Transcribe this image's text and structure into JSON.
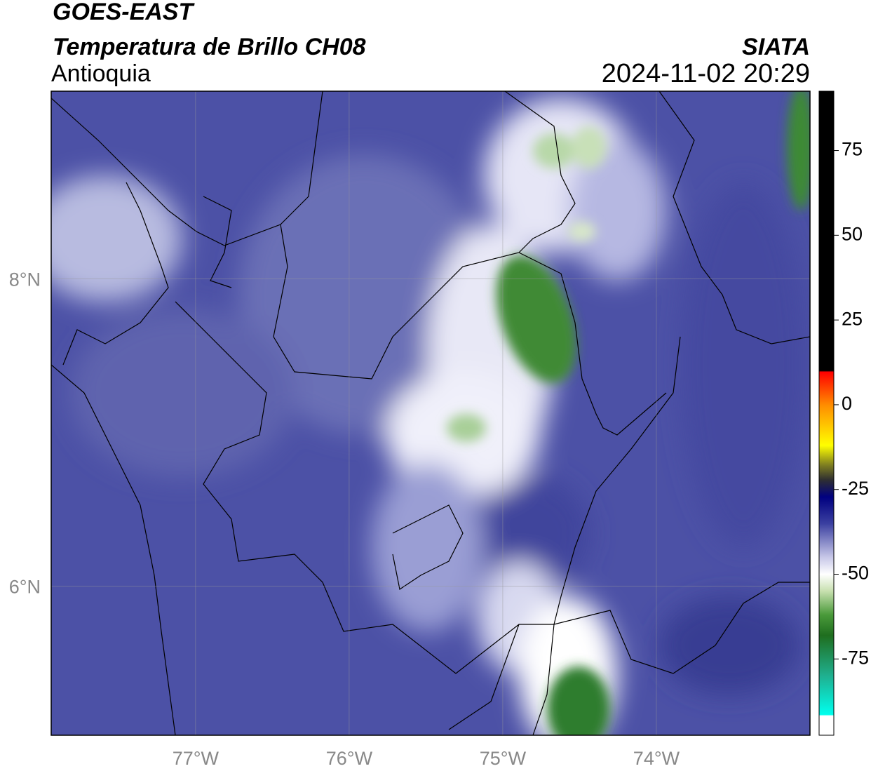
{
  "header": {
    "title": "GOES-EAST",
    "subtitle": "Temperatura de Brillo CH08",
    "region": "Antioquia",
    "source": "SIATA",
    "datetime": "2024-11-02 20:29"
  },
  "map": {
    "xlim": [
      -77.94,
      -73.0
    ],
    "ylim": [
      5.03,
      9.22
    ],
    "xticks": [
      {
        "value": -77,
        "label": "77°W"
      },
      {
        "value": -76,
        "label": "76°W"
      },
      {
        "value": -75,
        "label": "75°W"
      },
      {
        "value": -74,
        "label": "74°W"
      }
    ],
    "yticks": [
      {
        "value": 6,
        "label": "6°N"
      },
      {
        "value": 8,
        "label": "8°N"
      }
    ],
    "grid": true
  },
  "colorbar": {
    "lim": [
      -97.5,
      92.5
    ],
    "ticks": [
      75,
      50,
      25,
      0,
      -25,
      -50,
      -75
    ]
  }
}
